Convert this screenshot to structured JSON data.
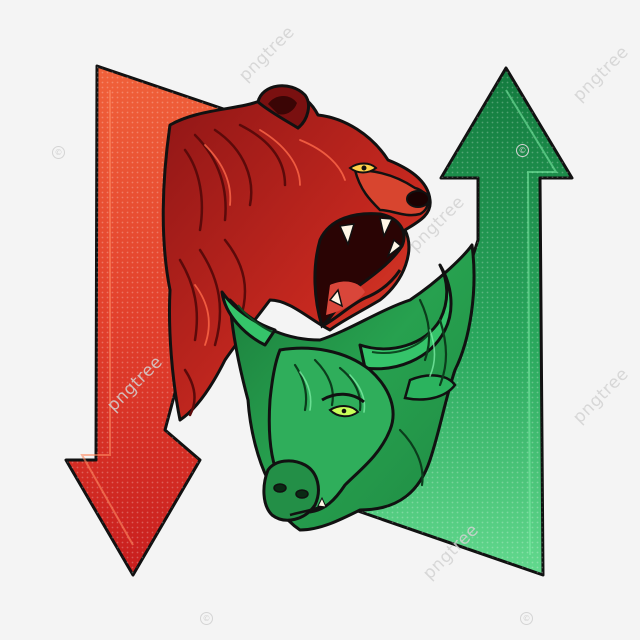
{
  "watermark": {
    "text": "pngtree"
  },
  "colors": {
    "background": "#f4f4f4",
    "bear_arrow": "#d9352a",
    "bull_arrow": "#1e8f4e",
    "outline": "#111111"
  },
  "icons": {
    "down_arrow": "red-down-arrow-icon",
    "up_arrow": "green-up-arrow-icon",
    "bear": "bear-head-icon",
    "bull": "bull-head-icon"
  }
}
